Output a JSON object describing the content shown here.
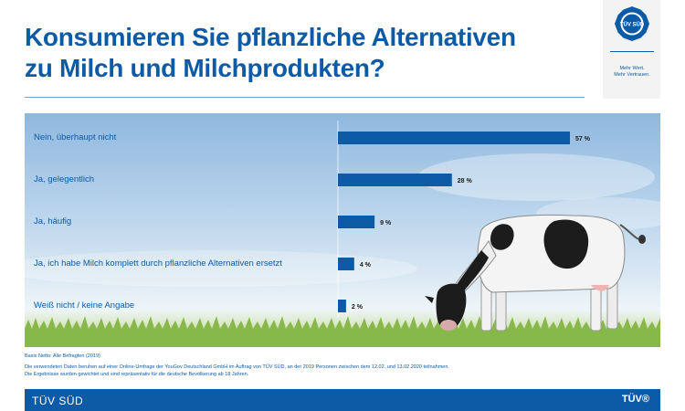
{
  "title": {
    "line1": "Konsumieren Sie pflanzliche Alternativen",
    "line2": "zu Milch und Milchprodukten?"
  },
  "logo": {
    "badge_text": "TÜV SÜD",
    "tagline_line1": "Mehr Wert.",
    "tagline_line2": "Mehr Vertrauen."
  },
  "chart_data": {
    "type": "bar",
    "orientation": "horizontal",
    "categories": [
      "Nein, überhaupt nicht",
      "Ja, gelegentlich",
      "Ja, häufig",
      "Ja, ich habe Milch komplett durch pflanzliche Alternativen ersetzt",
      "Weiß nicht / keine Angabe"
    ],
    "values": [
      57,
      28,
      9,
      4,
      2
    ],
    "value_labels": [
      "57 %",
      "28 %",
      "9 %",
      "4 %",
      "2 %"
    ],
    "unit": "%",
    "xlim": [
      0,
      57
    ],
    "bar_color": "#0d5ba6",
    "grid": false,
    "legend": "none"
  },
  "notes": {
    "base": "Basis Netto: Alle Befragten (2019)",
    "method": "Die verwendeten Daten beruhen auf einer Online-Umfrage der YouGov Deutschland GmbH im Auftrag von TÜV SÜD, an der 2019 Personen zwischen dem 12.02. und 13.02.2020 teilnahmen.",
    "weighting": "Die Ergebnisse wurden gewichtet und sind repräsentativ für die deutsche Bevölkerung ab 18 Jahren."
  },
  "footer": {
    "brand": "TÜV SÜD",
    "mark": "TÜV®"
  },
  "colors": {
    "brand_blue": "#0d5ba6",
    "footer_blue": "#0d5ba6"
  }
}
